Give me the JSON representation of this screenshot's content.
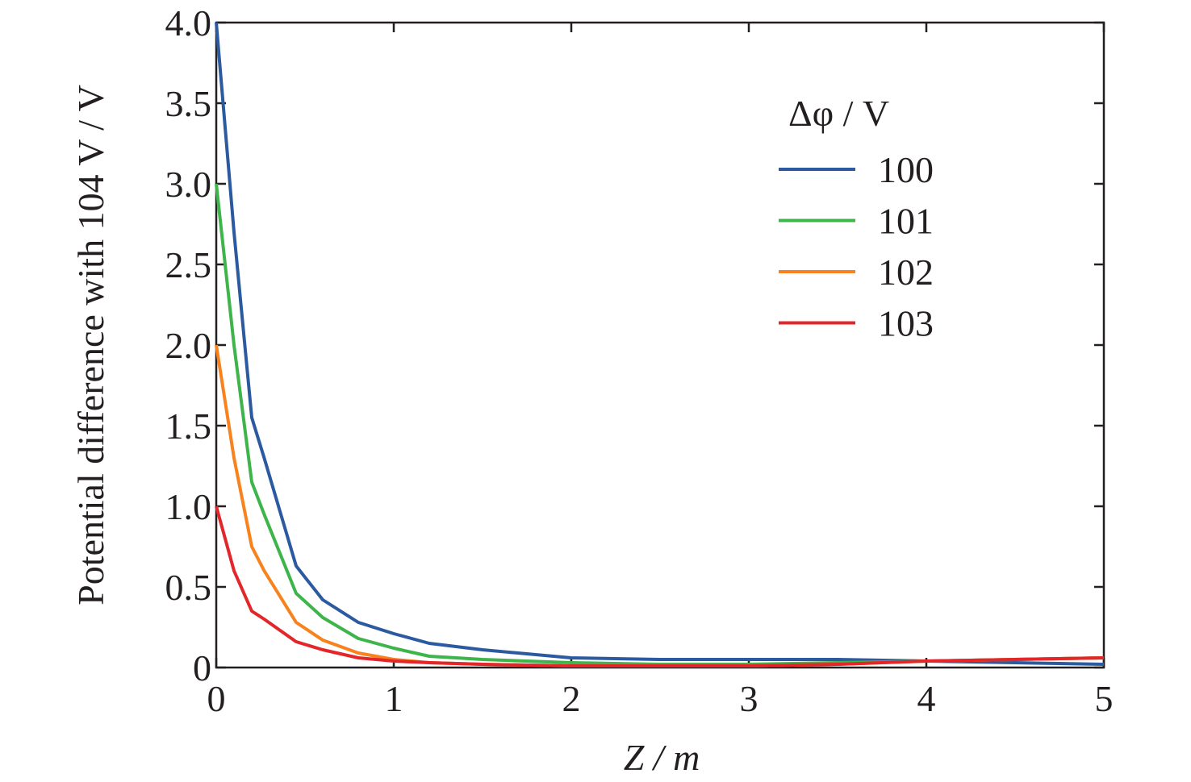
{
  "chart_data": {
    "type": "line",
    "x_label": "Z / m",
    "y_label": "Potential difference with 104 V / V",
    "legend_title": "Δφ / V",
    "legend": "upper right",
    "x": [
      0,
      0.1,
      0.2,
      0.27,
      0.45,
      0.6,
      0.8,
      1,
      1.2,
      1.5,
      2,
      2.5,
      3,
      3.5,
      4,
      4.5,
      5
    ],
    "series": [
      {
        "name": "100",
        "color": "#2c5aa0",
        "values": [
          4.0,
          2.7,
          1.55,
          1.3,
          0.63,
          0.42,
          0.28,
          0.21,
          0.15,
          0.11,
          0.06,
          0.05,
          0.05,
          0.05,
          0.04,
          0.03,
          0.02
        ]
      },
      {
        "name": "101",
        "color": "#3db54a",
        "values": [
          3.0,
          2.0,
          1.15,
          0.95,
          0.46,
          0.31,
          0.18,
          0.12,
          0.07,
          0.05,
          0.03,
          0.02,
          0.02,
          0.03,
          0.04,
          0.05,
          0.06
        ]
      },
      {
        "name": "102",
        "color": "#f7821e",
        "values": [
          2.0,
          1.3,
          0.75,
          0.6,
          0.28,
          0.17,
          0.09,
          0.05,
          0.03,
          0.02,
          0.01,
          0.01,
          0.01,
          0.02,
          0.04,
          0.05,
          0.06
        ]
      },
      {
        "name": "103",
        "color": "#e3262a",
        "values": [
          1.0,
          0.6,
          0.35,
          0.3,
          0.16,
          0.11,
          0.06,
          0.04,
          0.03,
          0.02,
          0.01,
          0.01,
          0.01,
          0.02,
          0.04,
          0.05,
          0.06
        ]
      }
    ],
    "xlim": [
      0,
      5
    ],
    "xticks": [
      0,
      1,
      2,
      3,
      4,
      5
    ],
    "ylim": [
      0,
      4
    ],
    "yticks": [
      0,
      0.5,
      {
        "value": 1,
        "label": "1.0"
      },
      1.5,
      {
        "value": 2,
        "label": "2.0"
      },
      2.5,
      {
        "value": 3,
        "label": "3.0"
      },
      3.5,
      {
        "value": 4,
        "label": "4.0"
      }
    ],
    "grid": false
  }
}
